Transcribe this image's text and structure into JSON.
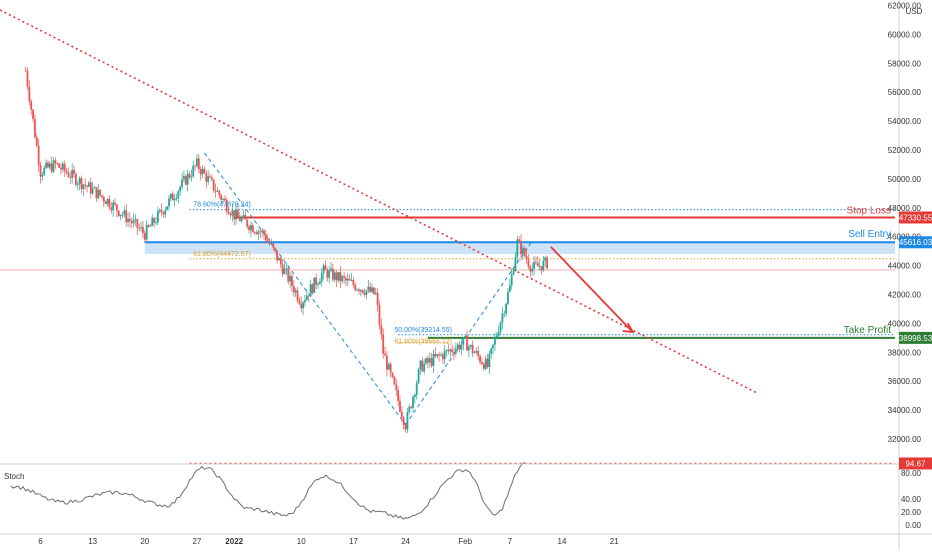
{
  "symbol_currency": "USD",
  "colors": {
    "up": "#26a69a",
    "down": "#ef5350",
    "trendline": "#e53935",
    "stop_loss": "#e53935",
    "sell_entry": "#1e88e5",
    "entry_zone": "#cfe3f7",
    "take_profit": "#2e7d32",
    "fib_blue": "#1e88e5",
    "fib_orange": "#e0a030",
    "stoch": "#6e6e6e",
    "stoch_marker": "#e53935"
  },
  "levels": {
    "stop_loss": {
      "label": "Stop Loss",
      "price": 47330.55,
      "badge": "47330.55"
    },
    "sell_entry": {
      "label": "Sell Entry",
      "price": 45616.03,
      "badge": "45616.03"
    },
    "take_profit": {
      "label": "Take Profit",
      "price": 38998.53,
      "badge": "38998.53"
    }
  },
  "fib_labels": {
    "upper": "78.60%(47878.24)",
    "lower": "61.80%(44472.57)",
    "mid_a": "50.00%(39214.55)",
    "mid_b": "61.80%(38666.12)"
  },
  "stoch": {
    "label": "Stoch",
    "marker_badge": "94.67",
    "ticks": [
      "80.00",
      "40.00",
      "20.00",
      "0.00"
    ]
  },
  "chart_data": {
    "type": "candlestick",
    "x_axis_labels": [
      "6",
      "13",
      "20",
      "27",
      "2022",
      "10",
      "17",
      "24",
      "Feb",
      "7",
      "14",
      "21"
    ],
    "y_axis_labels": [
      "62000.00",
      "60000.00",
      "58000.00",
      "56000.00",
      "54000.00",
      "52000.00",
      "50000.00",
      "48000.00",
      "46000.00",
      "44000.00",
      "42000.00",
      "40000.00",
      "38000.00",
      "36000.00",
      "34000.00",
      "32000.00"
    ],
    "ylim": [
      31000,
      62000
    ],
    "key_closes": [
      {
        "date": "Dec 4",
        "close": 57500
      },
      {
        "date": "Dec 6",
        "close": 50500
      },
      {
        "date": "Dec 8",
        "close": 51000
      },
      {
        "date": "Dec 15",
        "close": 48500
      },
      {
        "date": "Dec 20",
        "close": 46200
      },
      {
        "date": "Dec 27",
        "close": 51000
      },
      {
        "date": "Jan 1",
        "close": 47500
      },
      {
        "date": "Jan 5",
        "close": 46200
      },
      {
        "date": "Jan 10",
        "close": 41500
      },
      {
        "date": "Jan 13",
        "close": 43600
      },
      {
        "date": "Jan 20",
        "close": 42000
      },
      {
        "date": "Jan 21",
        "close": 38000
      },
      {
        "date": "Jan 24",
        "close": 33000
      },
      {
        "date": "Jan 26",
        "close": 37000
      },
      {
        "date": "Feb 1",
        "close": 38700
      },
      {
        "date": "Feb 4",
        "close": 37000
      },
      {
        "date": "Feb 7",
        "close": 42500
      },
      {
        "date": "Feb 8",
        "close": 45600
      },
      {
        "date": "Feb 10",
        "close": 43800
      },
      {
        "date": "Feb 12",
        "close": 44200
      }
    ],
    "stochastic": [
      {
        "date": "Dec 2",
        "value": 60
      },
      {
        "date": "Dec 9",
        "value": 35
      },
      {
        "date": "Dec 16",
        "value": 50
      },
      {
        "date": "Dec 23",
        "value": 30
      },
      {
        "date": "Dec 28",
        "value": 88
      },
      {
        "date": "Jan 3",
        "value": 25
      },
      {
        "date": "Jan 8",
        "value": 15
      },
      {
        "date": "Jan 13",
        "value": 75
      },
      {
        "date": "Jan 20",
        "value": 20
      },
      {
        "date": "Jan 24",
        "value": 10
      },
      {
        "date": "Feb 1",
        "value": 85
      },
      {
        "date": "Feb 5",
        "value": 15
      },
      {
        "date": "Feb 9",
        "value": 94.67
      }
    ]
  }
}
